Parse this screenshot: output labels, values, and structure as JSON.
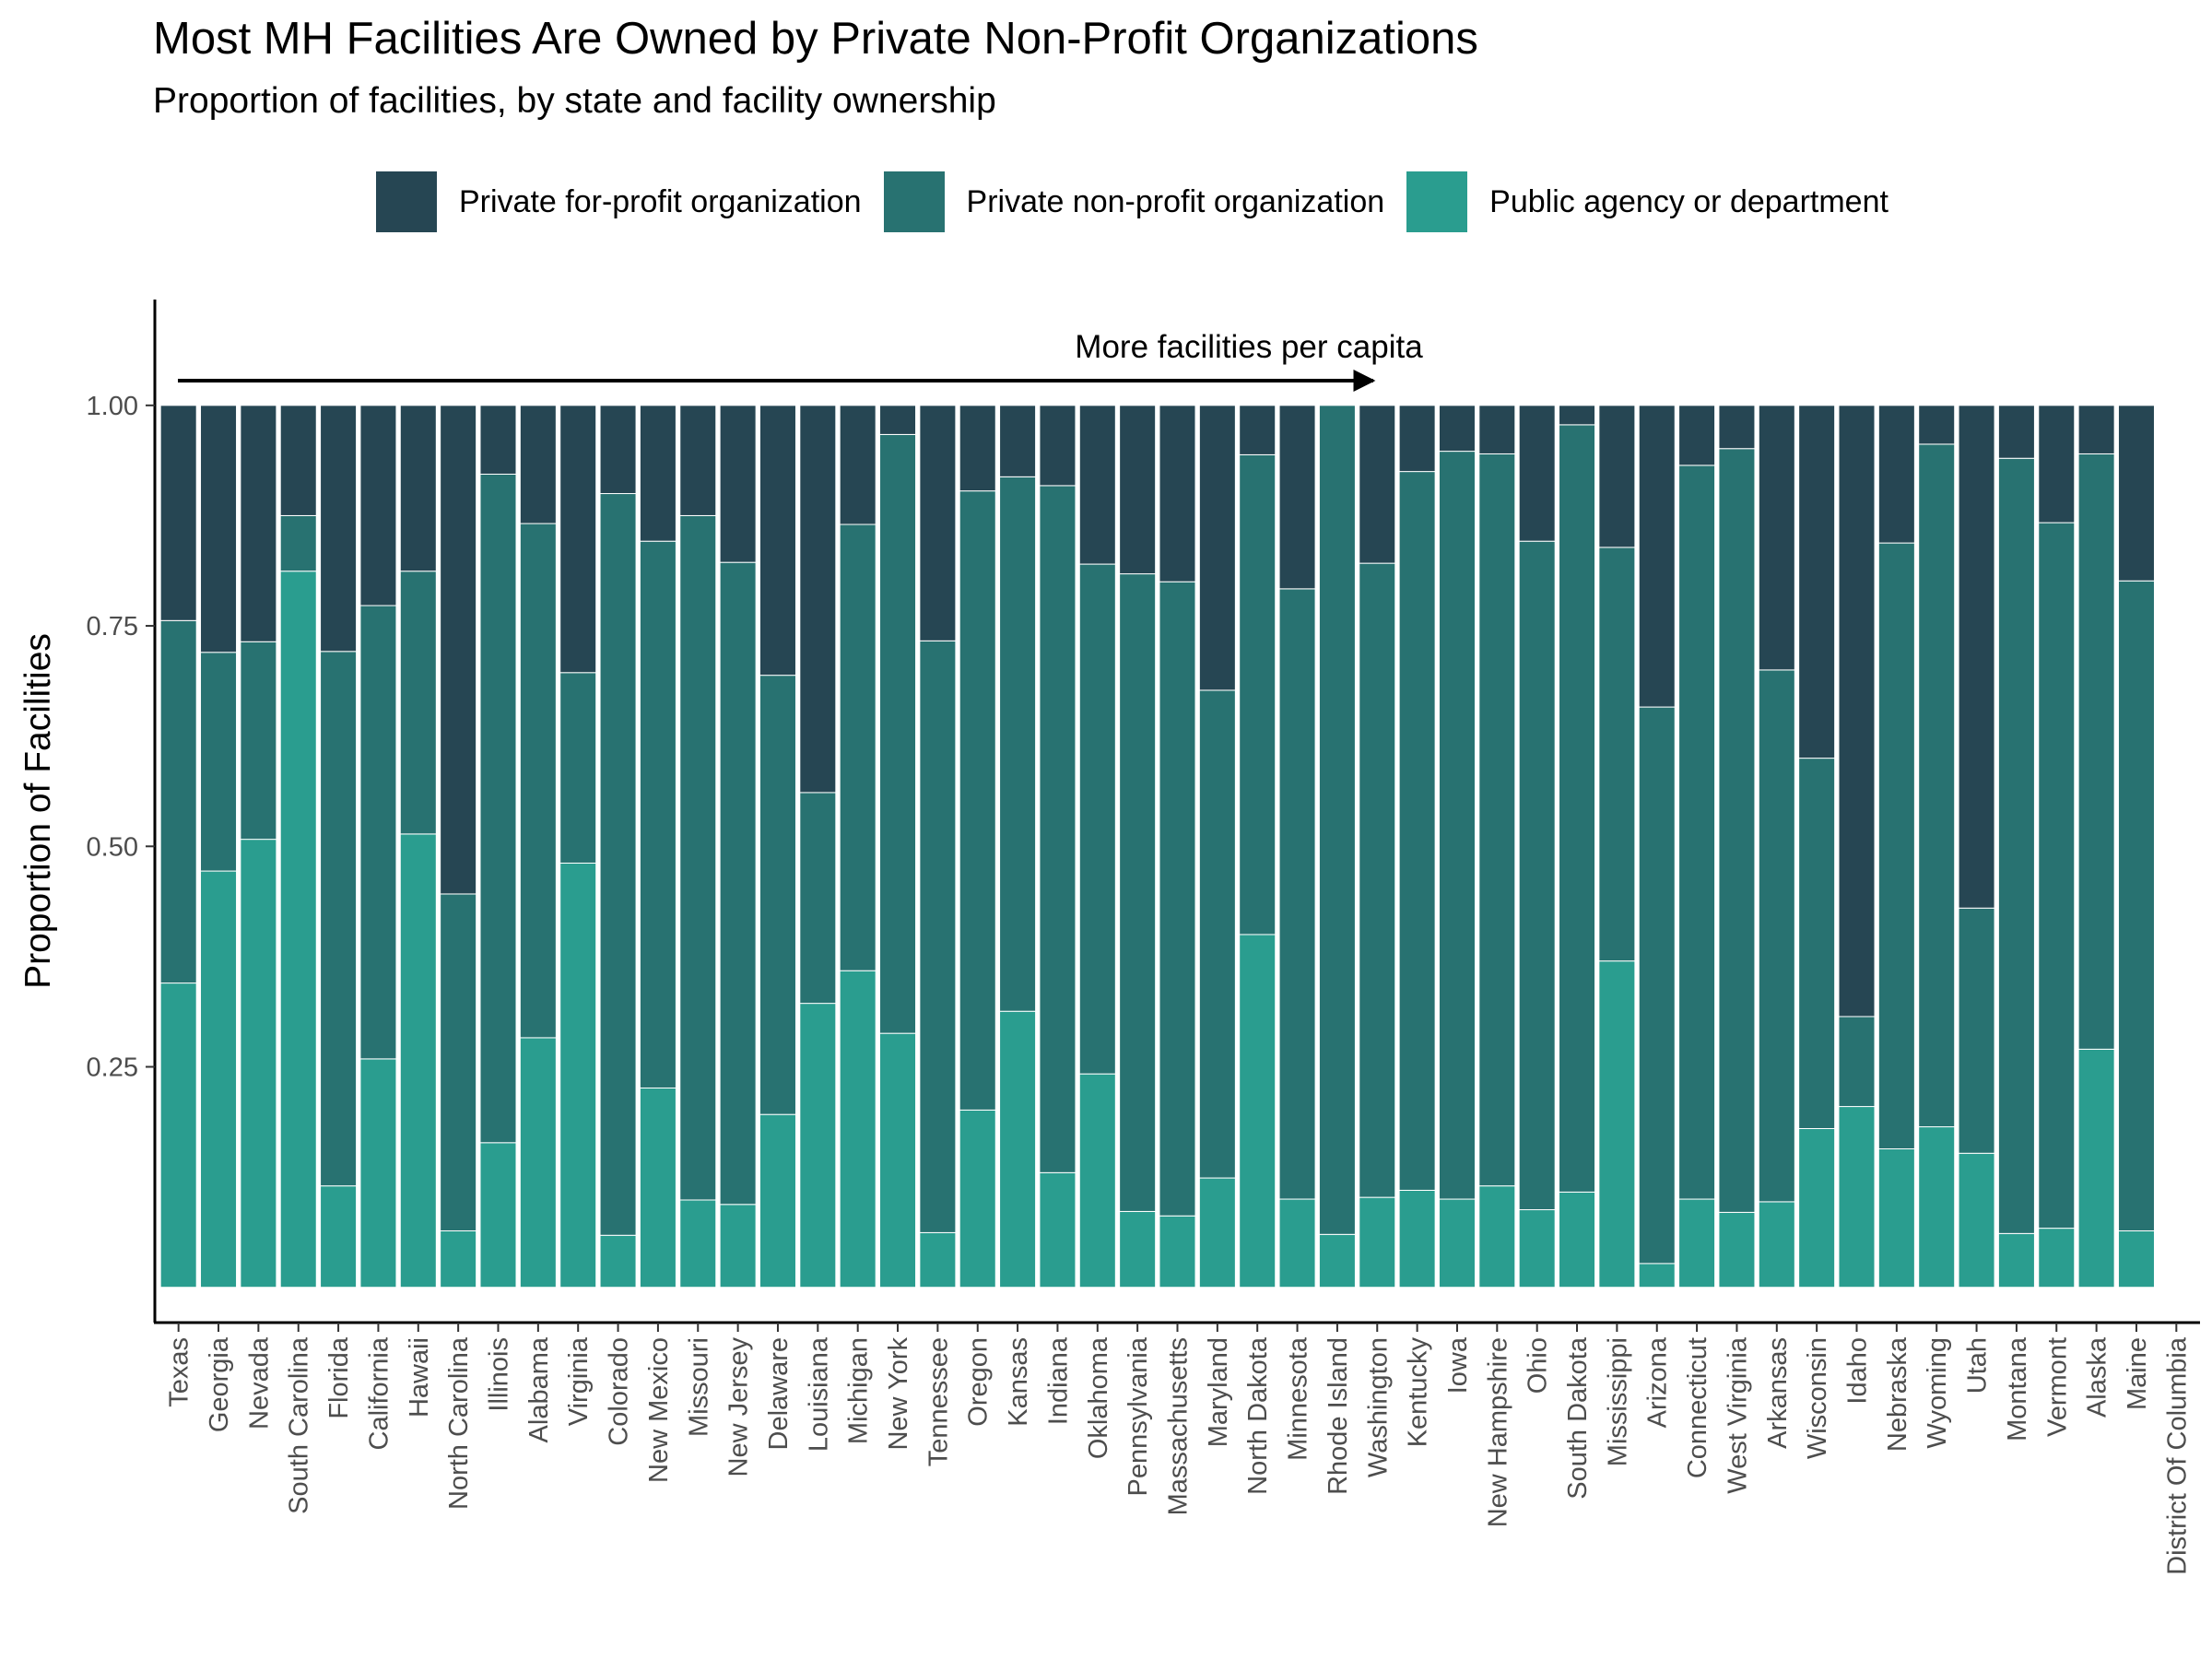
{
  "chart_data": {
    "type": "bar",
    "stacked": true,
    "title": "Most MH Facilities Are Owned by Private Non-Profit Organizations",
    "subtitle": "Proportion of facilities, by state and facility ownership",
    "ylabel": "Proportion of Facilities",
    "xlabel": "",
    "ylim": [
      -0.04,
      1.12
    ],
    "yticks": [
      "0.25",
      "0.50",
      "0.75",
      "1.00"
    ],
    "ytick_values": [
      0.25,
      0.5,
      0.75,
      1.0
    ],
    "legend_position": "top",
    "grid": false,
    "annotation": "More facilities per capita",
    "categories": [
      "Texas",
      "Georgia",
      "Nevada",
      "South Carolina",
      "Florida",
      "California",
      "Hawaii",
      "North Carolina",
      "Illinois",
      "Alabama",
      "Virginia",
      "Colorado",
      "New Mexico",
      "Missouri",
      "New Jersey",
      "Delaware",
      "Louisiana",
      "Michigan",
      "New York",
      "Tennessee",
      "Oregon",
      "Kansas",
      "Indiana",
      "Oklahoma",
      "Pennsylvania",
      "Massachusetts",
      "Maryland",
      "North Dakota",
      "Minnesota",
      "Rhode Island",
      "Washington",
      "Kentucky",
      "Iowa",
      "New Hampshire",
      "Ohio",
      "South Dakota",
      "Mississippi",
      "Arizona",
      "Connecticut",
      "West Virginia",
      "Arkansas",
      "Wisconsin",
      "Idaho",
      "Nebraska",
      "Wyoming",
      "Utah",
      "Montana",
      "Vermont",
      "Alaska",
      "Maine",
      "District Of Columbia"
    ],
    "series": [
      {
        "name": "Public agency or department",
        "color": "#2a9d8f",
        "values": [
          0.345,
          0.472,
          0.508,
          0.812,
          0.115,
          0.259,
          0.514,
          0.064,
          0.164,
          0.283,
          0.481,
          0.059,
          0.226,
          0.099,
          0.094,
          0.196,
          0.322,
          0.359,
          0.288,
          0.062,
          0.201,
          0.313,
          0.13,
          0.242,
          0.086,
          0.081,
          0.124,
          0.4,
          0.1,
          0.06,
          0.102,
          0.11,
          0.1,
          0.115,
          0.088,
          0.108,
          0.37,
          0.027,
          0.1,
          0.085,
          0.097,
          0.18,
          0.205,
          0.157,
          0.182,
          0.152,
          0.061,
          0.067,
          0.27,
          0.064,
          0.0
        ]
      },
      {
        "name": "Private non-profit organization",
        "color": "#287271",
        "values": [
          0.411,
          0.248,
          0.224,
          0.063,
          0.606,
          0.514,
          0.298,
          0.382,
          0.758,
          0.583,
          0.216,
          0.841,
          0.62,
          0.776,
          0.728,
          0.498,
          0.239,
          0.506,
          0.679,
          0.671,
          0.702,
          0.606,
          0.779,
          0.578,
          0.723,
          0.719,
          0.553,
          0.544,
          0.692,
          0.94,
          0.719,
          0.815,
          0.848,
          0.83,
          0.758,
          0.87,
          0.469,
          0.631,
          0.832,
          0.866,
          0.603,
          0.42,
          0.102,
          0.687,
          0.774,
          0.278,
          0.879,
          0.8,
          0.675,
          0.737,
          0.0
        ]
      },
      {
        "name": "Private for-profit organization",
        "color": "#264653",
        "values": [
          0.244,
          0.28,
          0.268,
          0.125,
          0.279,
          0.227,
          0.188,
          0.554,
          0.078,
          0.134,
          0.303,
          0.1,
          0.154,
          0.125,
          0.178,
          0.306,
          0.439,
          0.135,
          0.033,
          0.267,
          0.097,
          0.081,
          0.091,
          0.18,
          0.191,
          0.2,
          0.323,
          0.056,
          0.208,
          0.0,
          0.179,
          0.075,
          0.052,
          0.055,
          0.154,
          0.022,
          0.161,
          0.342,
          0.068,
          0.049,
          0.3,
          0.4,
          0.693,
          0.156,
          0.044,
          0.57,
          0.06,
          0.133,
          0.055,
          0.199,
          0.0
        ]
      }
    ]
  },
  "legend": [
    {
      "label": "Private for-profit organization",
      "color": "#264653"
    },
    {
      "label": "Private non-profit organization",
      "color": "#287271"
    },
    {
      "label": "Public agency or department",
      "color": "#2a9d8f"
    }
  ]
}
